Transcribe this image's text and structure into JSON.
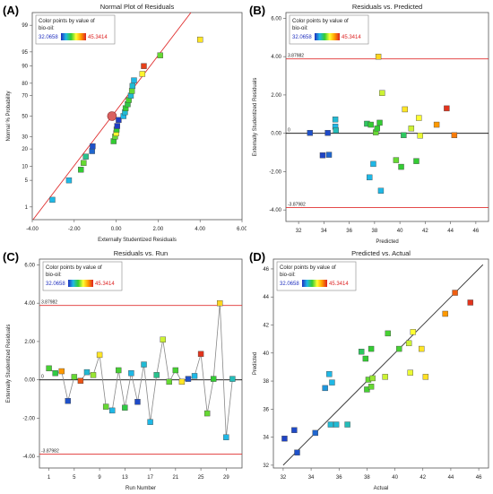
{
  "legend": {
    "title": "Color points by value of",
    "subtitle": "bio-oil:",
    "min": "32.0658",
    "max": "45.3414"
  },
  "scale_colors": [
    "#1f2fbf",
    "#1fb8e6",
    "#33cc33",
    "#ffff33",
    "#ff9900",
    "#dd2222"
  ],
  "chart_data": [
    {
      "type": "scatter",
      "panel_label": "(A)",
      "title": "Normal Plot of Residuals",
      "xlabel": "Externally Studentized Residuals",
      "ylabel": "Normal % Probability",
      "xlim": [
        -4.0,
        6.0
      ],
      "x_ticks": [
        "-4.00",
        "-2.00",
        "0.00",
        "2.00",
        "4.00",
        "6.00"
      ],
      "y_ticks": [
        "1",
        "5",
        "10",
        "20",
        "30",
        "50",
        "70",
        "80",
        "90",
        "95",
        "99"
      ],
      "points": [
        {
          "x": -3.04,
          "y": 1.6,
          "c": 0.2
        },
        {
          "x": -2.25,
          "y": 5.0,
          "c": 0.2
        },
        {
          "x": -1.68,
          "y": 8.5,
          "c": 0.4
        },
        {
          "x": -1.55,
          "y": 11.5,
          "c": 0.45
        },
        {
          "x": -1.45,
          "y": 15.0,
          "c": 0.3
        },
        {
          "x": -1.15,
          "y": 18.5,
          "c": 0.08
        },
        {
          "x": -1.12,
          "y": 22.0,
          "c": 0.05
        },
        {
          "x": -0.12,
          "y": 26.0,
          "c": 0.4
        },
        {
          "x": -0.05,
          "y": 30.0,
          "c": 0.45
        },
        {
          "x": 0.0,
          "y": 33.0,
          "c": 0.62
        },
        {
          "x": 0.02,
          "y": 36.5,
          "c": 0.4
        },
        {
          "x": 0.05,
          "y": 40.0,
          "c": 0.02
        },
        {
          "x": 0.12,
          "y": 46.0,
          "c": 0.02
        },
        {
          "x": 0.35,
          "y": 50.0,
          "c": 0.2
        },
        {
          "x": 0.42,
          "y": 54.0,
          "c": 0.22
        },
        {
          "x": 0.45,
          "y": 58.0,
          "c": 0.4
        },
        {
          "x": 0.55,
          "y": 62.0,
          "c": 0.38
        },
        {
          "x": 0.6,
          "y": 66.0,
          "c": 0.42
        },
        {
          "x": 0.7,
          "y": 70.0,
          "c": 0.22
        },
        {
          "x": 0.75,
          "y": 74.0,
          "c": 0.45
        },
        {
          "x": 0.78,
          "y": 78.0,
          "c": 0.22
        },
        {
          "x": 0.85,
          "y": 82.0,
          "c": 0.2
        },
        {
          "x": 1.25,
          "y": 86.0,
          "c": 0.62
        },
        {
          "x": 1.32,
          "y": 90.0,
          "c": 0.95
        },
        {
          "x": 2.1,
          "y": 94.0,
          "c": 0.45
        },
        {
          "x": 4.0,
          "y": 97.5,
          "c": 0.65
        }
      ],
      "center_point": {
        "x": -0.2,
        "y": 50.0
      }
    },
    {
      "type": "scatter",
      "panel_label": "(B)",
      "title": "Residuals vs. Predicted",
      "xlabel": "Predicted",
      "ylabel": "Externally Studentized Residuals",
      "xlim": [
        31,
        47
      ],
      "ylim": [
        -4.6,
        6.3
      ],
      "x_ticks": [
        "32",
        "34",
        "36",
        "38",
        "40",
        "42",
        "44",
        "46"
      ],
      "y_ticks": [
        "-4.00",
        "-2.00",
        "0.00",
        "2.00",
        "4.00",
        "6.00"
      ],
      "limit_upper": "3.87982",
      "limit_lower": "-3.87982",
      "zero_label": "0",
      "points": [
        {
          "x": 32.9,
          "y": 0.02,
          "c": 0.05
        },
        {
          "x": 33.9,
          "y": -1.15,
          "c": 0.03
        },
        {
          "x": 34.3,
          "y": 0.02,
          "c": 0.04
        },
        {
          "x": 34.4,
          "y": -1.12,
          "c": 0.08
        },
        {
          "x": 34.9,
          "y": 0.35,
          "c": 0.2
        },
        {
          "x": 34.9,
          "y": 0.72,
          "c": 0.22
        },
        {
          "x": 34.95,
          "y": 0.15,
          "c": 0.25
        },
        {
          "x": 37.4,
          "y": 0.5,
          "c": 0.35
        },
        {
          "x": 37.6,
          "y": -2.3,
          "c": 0.2
        },
        {
          "x": 37.7,
          "y": 0.45,
          "c": 0.4
        },
        {
          "x": 37.9,
          "y": -1.6,
          "c": 0.2
        },
        {
          "x": 38.1,
          "y": 0.05,
          "c": 0.45
        },
        {
          "x": 38.2,
          "y": 0.25,
          "c": 0.4
        },
        {
          "x": 38.3,
          "y": 4.0,
          "c": 0.68
        },
        {
          "x": 38.4,
          "y": 0.55,
          "c": 0.4
        },
        {
          "x": 38.5,
          "y": -3.0,
          "c": 0.2
        },
        {
          "x": 38.6,
          "y": 2.1,
          "c": 0.55
        },
        {
          "x": 39.7,
          "y": -1.4,
          "c": 0.45
        },
        {
          "x": 40.1,
          "y": -1.75,
          "c": 0.4
        },
        {
          "x": 40.3,
          "y": -0.1,
          "c": 0.35
        },
        {
          "x": 40.4,
          "y": 1.25,
          "c": 0.65
        },
        {
          "x": 40.9,
          "y": 0.25,
          "c": 0.55
        },
        {
          "x": 41.3,
          "y": -1.45,
          "c": 0.4
        },
        {
          "x": 41.5,
          "y": 0.8,
          "c": 0.6
        },
        {
          "x": 41.6,
          "y": -0.12,
          "c": 0.58
        },
        {
          "x": 42.9,
          "y": 0.45,
          "c": 0.8
        },
        {
          "x": 43.7,
          "y": 1.3,
          "c": 0.97
        },
        {
          "x": 44.3,
          "y": -0.1,
          "c": 0.85
        }
      ]
    },
    {
      "type": "line",
      "panel_label": "(C)",
      "title": "Residuals vs. Run",
      "xlabel": "Run Number",
      "ylabel": "Externally Studentized Residuals",
      "xlim": [
        -0.5,
        31.5
      ],
      "ylim": [
        -4.6,
        6.3
      ],
      "x_ticks": [
        "1",
        "5",
        "9",
        "13",
        "17",
        "21",
        "25",
        "29"
      ],
      "x_tick_values": [
        1,
        5,
        9,
        13,
        17,
        21,
        25,
        29
      ],
      "y_ticks": [
        "-4.00",
        "-2.00",
        "0.00",
        "2.00",
        "4.00",
        "6.00"
      ],
      "limit_upper": "3.87982",
      "limit_lower": "-3.87982",
      "zero_label": "0",
      "runs": [
        1,
        2,
        3,
        4,
        5,
        6,
        7,
        8,
        9,
        10,
        11,
        12,
        13,
        14,
        15,
        16,
        17,
        18,
        19,
        20,
        21,
        22,
        23,
        24,
        25,
        26,
        27,
        28,
        29,
        30
      ],
      "values": [
        0.6,
        0.35,
        0.45,
        -1.1,
        0.15,
        -0.05,
        0.4,
        0.25,
        1.3,
        -1.4,
        -1.6,
        0.5,
        -1.45,
        0.35,
        -1.15,
        0.8,
        -2.2,
        0.25,
        2.1,
        -0.1,
        0.5,
        -0.1,
        0.05,
        0.2,
        1.35,
        -1.75,
        0.05,
        4.0,
        -3.0,
        0.05
      ],
      "colors": [
        0.42,
        0.38,
        0.8,
        0.05,
        0.45,
        0.92,
        0.22,
        0.5,
        0.65,
        0.45,
        0.2,
        0.42,
        0.38,
        0.2,
        0.04,
        0.22,
        0.2,
        0.3,
        0.55,
        0.45,
        0.42,
        0.65,
        0.05,
        0.2,
        0.97,
        0.45,
        0.4,
        0.68,
        0.2,
        0.25
      ]
    },
    {
      "type": "scatter",
      "panel_label": "(D)",
      "title": "Predicted vs. Actual",
      "xlabel": "Actual",
      "ylabel": "Predicted",
      "xlim": [
        31.3,
        46.7
      ],
      "ylim": [
        31.8,
        46.7
      ],
      "x_ticks": [
        "32",
        "34",
        "36",
        "38",
        "40",
        "42",
        "44",
        "46"
      ],
      "y_ticks": [
        "32",
        "34",
        "36",
        "38",
        "40",
        "42",
        "44",
        "46"
      ],
      "points": [
        {
          "x": 32.1,
          "y": 33.9,
          "c": 0.03
        },
        {
          "x": 32.8,
          "y": 34.5,
          "c": 0.04
        },
        {
          "x": 33.0,
          "y": 32.9,
          "c": 0.05
        },
        {
          "x": 34.3,
          "y": 34.3,
          "c": 0.08
        },
        {
          "x": 35.0,
          "y": 37.5,
          "c": 0.15
        },
        {
          "x": 35.3,
          "y": 38.5,
          "c": 0.2
        },
        {
          "x": 35.4,
          "y": 34.9,
          "c": 0.22
        },
        {
          "x": 35.5,
          "y": 37.9,
          "c": 0.2
        },
        {
          "x": 35.8,
          "y": 34.9,
          "c": 0.22
        },
        {
          "x": 36.6,
          "y": 34.9,
          "c": 0.25
        },
        {
          "x": 37.6,
          "y": 40.1,
          "c": 0.35
        },
        {
          "x": 37.9,
          "y": 39.6,
          "c": 0.4
        },
        {
          "x": 38.0,
          "y": 37.4,
          "c": 0.42
        },
        {
          "x": 38.1,
          "y": 38.1,
          "c": 0.45
        },
        {
          "x": 38.3,
          "y": 37.6,
          "c": 0.45
        },
        {
          "x": 38.3,
          "y": 40.3,
          "c": 0.4
        },
        {
          "x": 38.4,
          "y": 38.2,
          "c": 0.5
        },
        {
          "x": 39.3,
          "y": 38.3,
          "c": 0.55
        },
        {
          "x": 39.5,
          "y": 41.4,
          "c": 0.42
        },
        {
          "x": 40.3,
          "y": 40.3,
          "c": 0.42
        },
        {
          "x": 41.0,
          "y": 40.7,
          "c": 0.55
        },
        {
          "x": 41.1,
          "y": 38.6,
          "c": 0.58
        },
        {
          "x": 41.3,
          "y": 41.5,
          "c": 0.6
        },
        {
          "x": 41.9,
          "y": 40.3,
          "c": 0.65
        },
        {
          "x": 42.2,
          "y": 38.3,
          "c": 0.66
        },
        {
          "x": 43.6,
          "y": 42.8,
          "c": 0.8
        },
        {
          "x": 44.3,
          "y": 44.3,
          "c": 0.9
        },
        {
          "x": 45.4,
          "y": 43.6,
          "c": 0.97
        }
      ]
    }
  ]
}
